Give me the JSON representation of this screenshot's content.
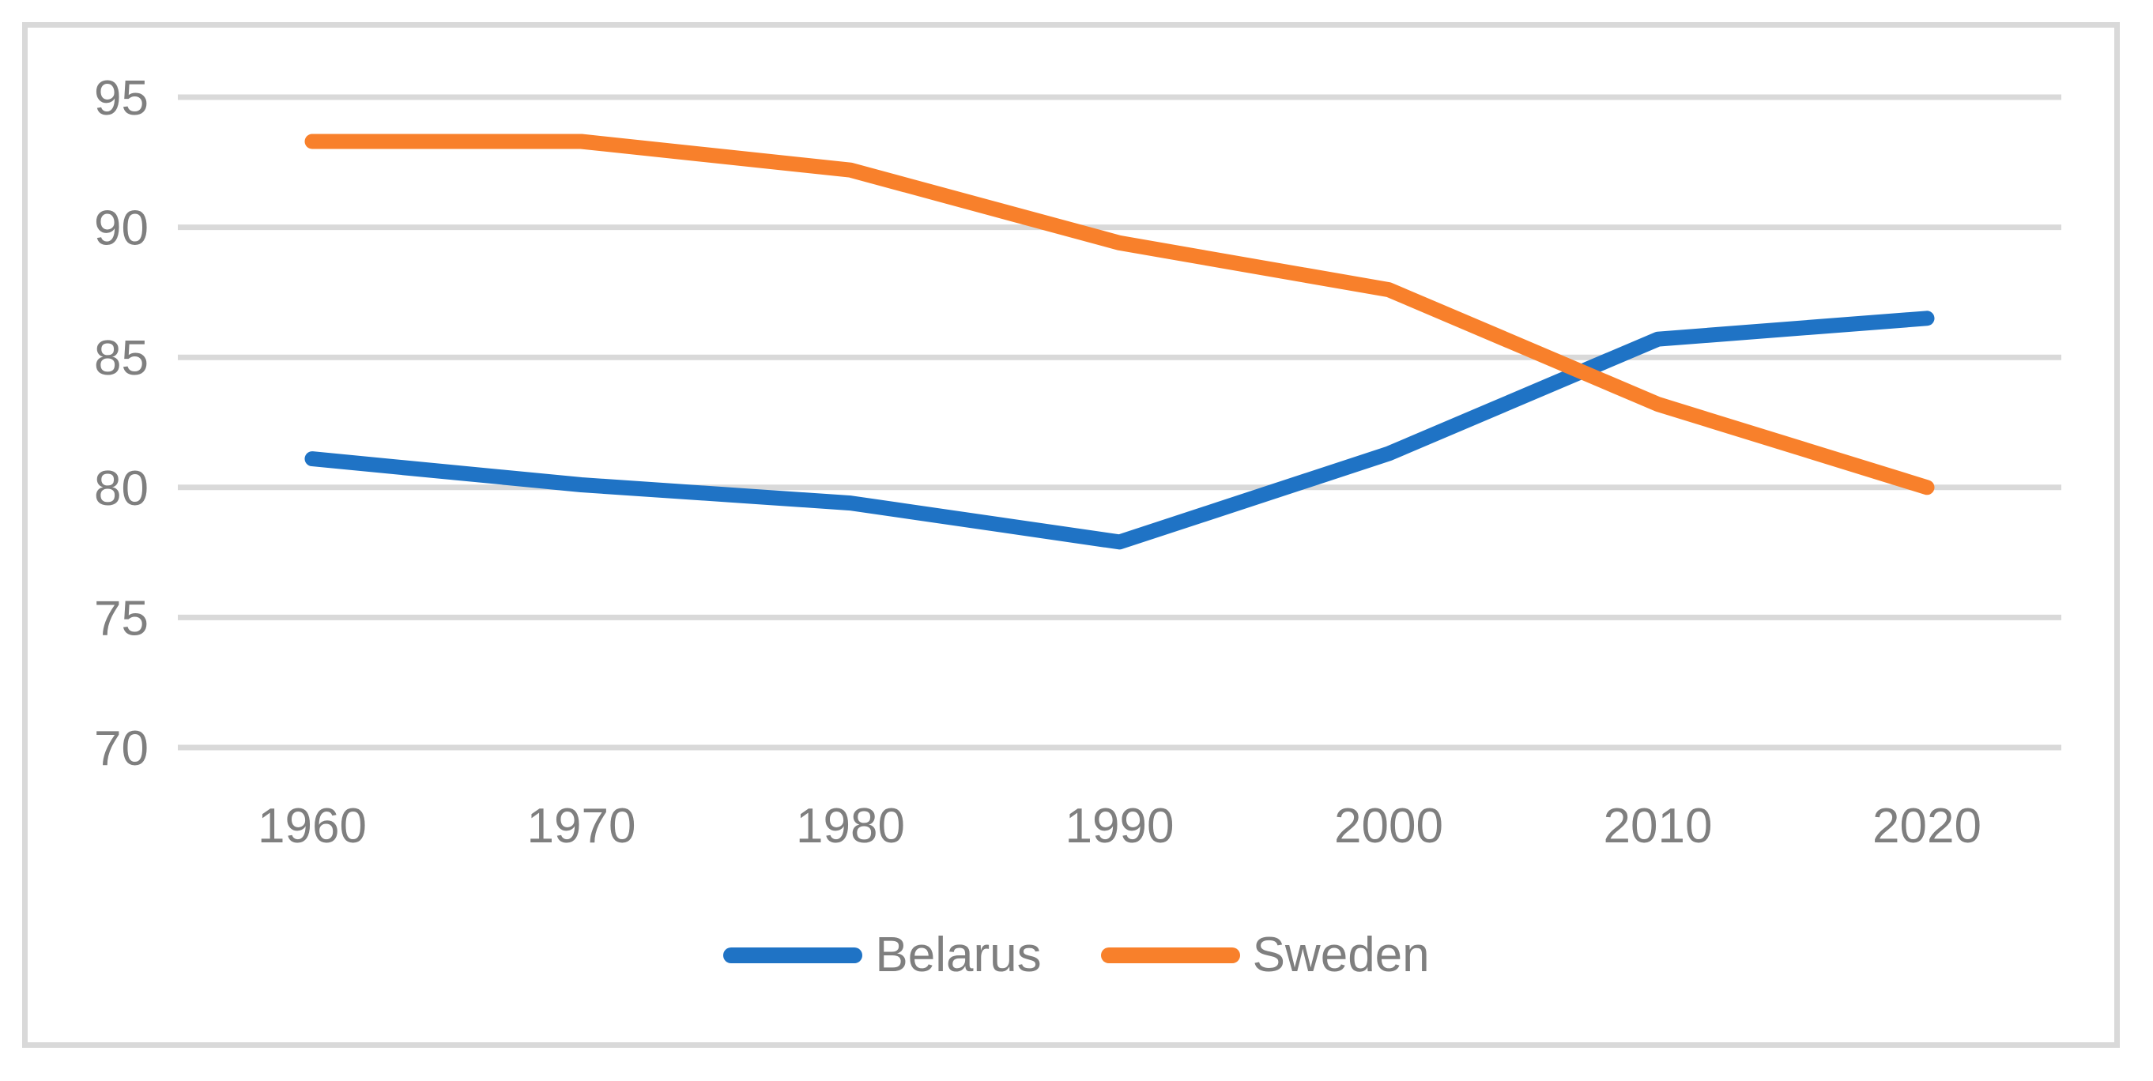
{
  "chart_data": {
    "type": "line",
    "title": "",
    "xlabel": "",
    "ylabel": "",
    "x": [
      1960,
      1970,
      1980,
      1990,
      2000,
      2010,
      2020
    ],
    "x_tick_labels": [
      "1960",
      "1970",
      "1980",
      "1990",
      "2000",
      "2010",
      "2020"
    ],
    "y_ticks": [
      70,
      75,
      80,
      85,
      90,
      95
    ],
    "y_tick_labels": [
      "70",
      "75",
      "80",
      "85",
      "90",
      "95"
    ],
    "ylim": [
      70,
      95
    ],
    "grid": true,
    "legend_position": "bottom",
    "series": [
      {
        "name": "Belarus",
        "color": "#1F73C5",
        "values": [
          81.1,
          80.1,
          79.4,
          77.9,
          81.3,
          85.7,
          86.5
        ]
      },
      {
        "name": "Sweden",
        "color": "#F8802B",
        "values": [
          93.3,
          93.3,
          92.2,
          89.4,
          87.6,
          83.2,
          80.0
        ]
      }
    ],
    "styles": {
      "gridline_color": "#D9D9D9",
      "label_color": "#7F7F7F",
      "background": "#FFFFFF",
      "line_width": 19
    }
  }
}
